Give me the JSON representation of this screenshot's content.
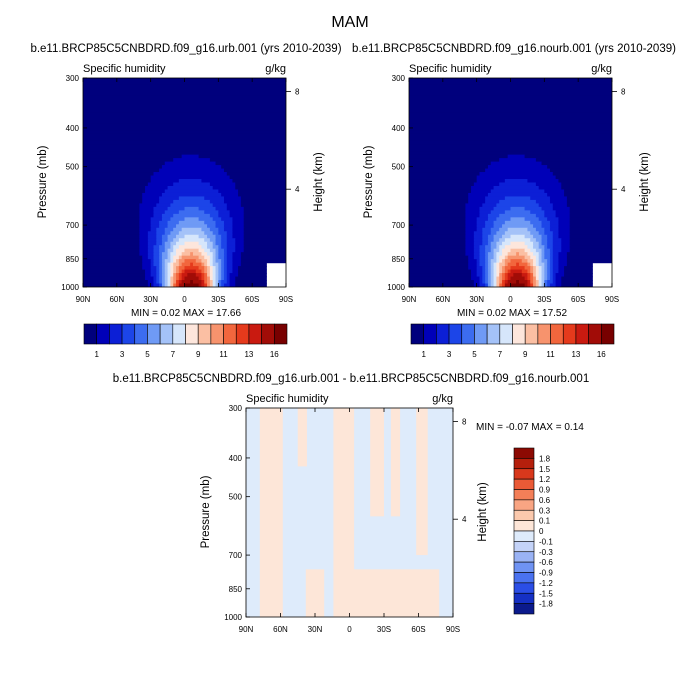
{
  "figure_title": "MAM",
  "panels": {
    "urb": {
      "title": "b.e11.BRCP85C5CNBDRD.f09_g16.urb.001 (yrs 2010-2039)",
      "var_label": "Specific humidity",
      "unit_label": "g/kg",
      "ylabel": "Pressure (mb)",
      "ylabel_right": "Height (km)",
      "min_max": "MIN =   0.02   MAX =  17.66"
    },
    "nourb": {
      "title": "b.e11.BRCP85C5CNBDRD.f09_g16.nourb.001 (yrs 2010-2039)",
      "var_label": "Specific humidity",
      "unit_label": "g/kg",
      "ylabel": "Pressure (mb)",
      "ylabel_right": "Height (km)",
      "min_max": "MIN =   0.02   MAX =  17.52"
    },
    "diff": {
      "title": "b.e11.BRCP85C5CNBDRD.f09_g16.urb.001 - b.e11.BRCP85C5CNBDRD.f09_g16.nourb.001",
      "var_label": "Specific humidity",
      "unit_label": "g/kg",
      "ylabel": "Pressure (mb)",
      "ylabel_right": "Height (km)",
      "min_max": "MIN =  -0.07   MAX =   0.14"
    }
  },
  "colors": {
    "abs_scale": [
      "#00007d",
      "#0000b8",
      "#0c1fd6",
      "#1c45e8",
      "#3c6cf0",
      "#6f9af5",
      "#a4c2f8",
      "#d6e6fb",
      "#fde6dc",
      "#fbbfa3",
      "#f7936d",
      "#f2663d",
      "#e53a1c",
      "#c91a10",
      "#a10c07",
      "#780000"
    ],
    "diff_scale": [
      "#0b1a8c",
      "#1530c4",
      "#2b4ee6",
      "#4a72f0",
      "#6f93f3",
      "#9ab3f5",
      "#c4d3f8",
      "#deebfb",
      "#fde6d8",
      "#fbc9ad",
      "#f9a583",
      "#f47f58",
      "#ea5a36",
      "#d8381c",
      "#b51f0c",
      "#8c0a03"
    ]
  },
  "chart_data": [
    {
      "type": "heatmap",
      "name": "urb",
      "title": "b.e11.BRCP85C5CNBDRD.f09_g16.urb.001 (yrs 2010-2039)",
      "xlabel": "",
      "ylabel": "Pressure (mb)",
      "ylabel_right": "Height (km)",
      "x_ticks": [
        90,
        60,
        30,
        0,
        -30,
        -60,
        -90
      ],
      "x_ticklabels": [
        "90N",
        "60N",
        "30N",
        "0",
        "30S",
        "60S",
        "90S"
      ],
      "y_ticks": [
        300,
        400,
        500,
        700,
        850,
        1000
      ],
      "y_ticklabels": [
        "300",
        "400",
        "500",
        "700",
        "850",
        "1000"
      ],
      "y_right_ticks": [
        4,
        8
      ],
      "y_right_ticklabels": [
        "4",
        "8"
      ],
      "xlim": [
        90,
        -90
      ],
      "ylim": [
        1000,
        300
      ],
      "contour_levels": [
        1,
        2,
        3,
        4,
        5,
        6,
        7,
        8,
        9,
        10,
        11,
        12,
        13,
        14,
        16
      ],
      "min": 0.02,
      "max": 17.66,
      "colorbar_labels": [
        "1",
        "3",
        "5",
        "7",
        "9",
        "11",
        "13",
        "16"
      ],
      "colorbar_label_levels": [
        1,
        3,
        5,
        7,
        9,
        11,
        13,
        16
      ]
    },
    {
      "type": "heatmap",
      "name": "nourb",
      "title": "b.e11.BRCP85C5CNBDRD.f09_g16.nourb.001 (yrs 2010-2039)",
      "xlabel": "",
      "ylabel": "Pressure (mb)",
      "ylabel_right": "Height (km)",
      "x_ticks": [
        90,
        60,
        30,
        0,
        -30,
        -60,
        -90
      ],
      "x_ticklabels": [
        "90N",
        "60N",
        "30N",
        "0",
        "30S",
        "60S",
        "90S"
      ],
      "y_ticks": [
        300,
        400,
        500,
        700,
        850,
        1000
      ],
      "y_ticklabels": [
        "300",
        "400",
        "500",
        "700",
        "850",
        "1000"
      ],
      "y_right_ticks": [
        4,
        8
      ],
      "y_right_ticklabels": [
        "4",
        "8"
      ],
      "xlim": [
        90,
        -90
      ],
      "ylim": [
        1000,
        300
      ],
      "contour_levels": [
        1,
        2,
        3,
        4,
        5,
        6,
        7,
        8,
        9,
        10,
        11,
        12,
        13,
        14,
        16
      ],
      "min": 0.02,
      "max": 17.52,
      "colorbar_labels": [
        "1",
        "3",
        "5",
        "7",
        "9",
        "11",
        "13",
        "16"
      ],
      "colorbar_label_levels": [
        1,
        3,
        5,
        7,
        9,
        11,
        13,
        16
      ]
    },
    {
      "type": "heatmap",
      "name": "diff",
      "title": "b.e11.BRCP85C5CNBDRD.f09_g16.urb.001 - b.e11.BRCP85C5CNBDRD.f09_g16.nourb.001",
      "xlabel": "",
      "ylabel": "Pressure (mb)",
      "ylabel_right": "Height (km)",
      "x_ticks": [
        90,
        60,
        30,
        0,
        -30,
        -60,
        -90
      ],
      "x_ticklabels": [
        "90N",
        "60N",
        "30N",
        "0",
        "30S",
        "60S",
        "90S"
      ],
      "y_ticks": [
        300,
        400,
        500,
        700,
        850,
        1000
      ],
      "y_ticklabels": [
        "300",
        "400",
        "500",
        "700",
        "850",
        "1000"
      ],
      "y_right_ticks": [
        4,
        8
      ],
      "y_right_ticklabels": [
        "4",
        "8"
      ],
      "xlim": [
        90,
        -90
      ],
      "ylim": [
        1000,
        300
      ],
      "contour_levels": [
        -1.8,
        -1.5,
        -1.2,
        -0.9,
        -0.6,
        -0.3,
        -0.1,
        0,
        0.1,
        0.3,
        0.6,
        0.9,
        1.2,
        1.5,
        1.8
      ],
      "min": -0.07,
      "max": 0.14,
      "colorbar_labels": [
        "1.8",
        "1.5",
        "1.2",
        "0.9",
        "0.6",
        "0.3",
        "0.1",
        "0",
        "-0.1",
        "-0.3",
        "-0.6",
        "-0.9",
        "-1.2",
        "-1.5",
        "-1.8"
      ],
      "colorbar_label_levels": [
        1.8,
        1.5,
        1.2,
        0.9,
        0.6,
        0.3,
        0.1,
        0,
        -0.1,
        -0.3,
        -0.6,
        -0.9,
        -1.2,
        -1.5,
        -1.8
      ]
    }
  ]
}
